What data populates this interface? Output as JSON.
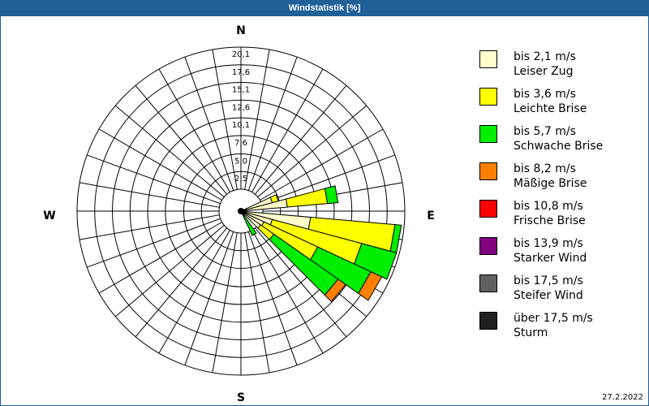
{
  "window": {
    "title": "Windstatistik [%]"
  },
  "footer": {
    "date": "27.2.2022"
  },
  "compass": {
    "n": "N",
    "e": "E",
    "s": "S",
    "w": "W"
  },
  "legend": [
    {
      "color": "#ffffcc",
      "line1": "bis 2,1 m/s",
      "line2": "Leiser Zug"
    },
    {
      "color": "#ffff00",
      "line1": "bis 3,6 m/s",
      "line2": "Leichte Brise"
    },
    {
      "color": "#00ee00",
      "line1": "bis 5,7 m/s",
      "line2": "Schwache Brise"
    },
    {
      "color": "#ff8000",
      "line1": "bis 8,2 m/s",
      "line2": "Mäßige Brise"
    },
    {
      "color": "#ff0000",
      "line1": "bis 10,8 m/s",
      "line2": "Frische Brise"
    },
    {
      "color": "#800080",
      "line1": "bis 13,9 m/s",
      "line2": "Starker Wind"
    },
    {
      "color": "#606060",
      "line1": "bis 17,5 m/s",
      "line2": "Steifer Wind"
    },
    {
      "color": "#202020",
      "line1": "über 17,5 m/s",
      "line2": "Sturm"
    }
  ],
  "chart_data": {
    "type": "wind-rose",
    "title": "Windstatistik [%]",
    "ring_labels": [
      "2,5",
      "5,0",
      "7,6",
      "10,1",
      "12,6",
      "15,1",
      "17,6",
      "20,1"
    ],
    "ring_values": [
      2.5,
      5.0,
      7.6,
      10.1,
      12.6,
      15.1,
      17.6,
      20.1
    ],
    "rmax": 20.1,
    "sector_width_deg": 10,
    "series_names": [
      "bis 2,1 m/s",
      "bis 3,6 m/s",
      "bis 5,7 m/s",
      "bis 8,2 m/s",
      "bis 10,8 m/s",
      "bis 13,9 m/s",
      "bis 17,5 m/s",
      "über 17,5 m/s"
    ],
    "series_colors": [
      "#ffffcc",
      "#ffff00",
      "#00ee00",
      "#ff8000",
      "#ff0000",
      "#800080",
      "#606060",
      "#202020"
    ],
    "sectors": [
      {
        "direction_deg": 70,
        "values": [
          1.5,
          0.9,
          0.0,
          0.0,
          0,
          0,
          0,
          0
        ]
      },
      {
        "direction_deg": 80,
        "values": [
          3.5,
          5.7,
          1.5,
          0.0,
          0,
          0,
          0,
          0
        ]
      },
      {
        "direction_deg": 100,
        "values": [
          6.8,
          12.0,
          0.9,
          0.0,
          0,
          0,
          0,
          0
        ]
      },
      {
        "direction_deg": 110,
        "values": [
          1.5,
          13.1,
          5.1,
          0.0,
          0,
          0,
          0,
          0
        ]
      },
      {
        "direction_deg": 120,
        "values": [
          0.5,
          8.4,
          8.3,
          1.7,
          0,
          0,
          0,
          0
        ]
      },
      {
        "direction_deg": 130,
        "values": [
          0.3,
          2.3,
          11.1,
          1.3,
          0,
          0,
          0,
          0
        ]
      },
      {
        "direction_deg": 150,
        "values": [
          0.0,
          0.0,
          0.7,
          0.0,
          0,
          0,
          0,
          0
        ]
      }
    ],
    "legend_position": "right"
  }
}
